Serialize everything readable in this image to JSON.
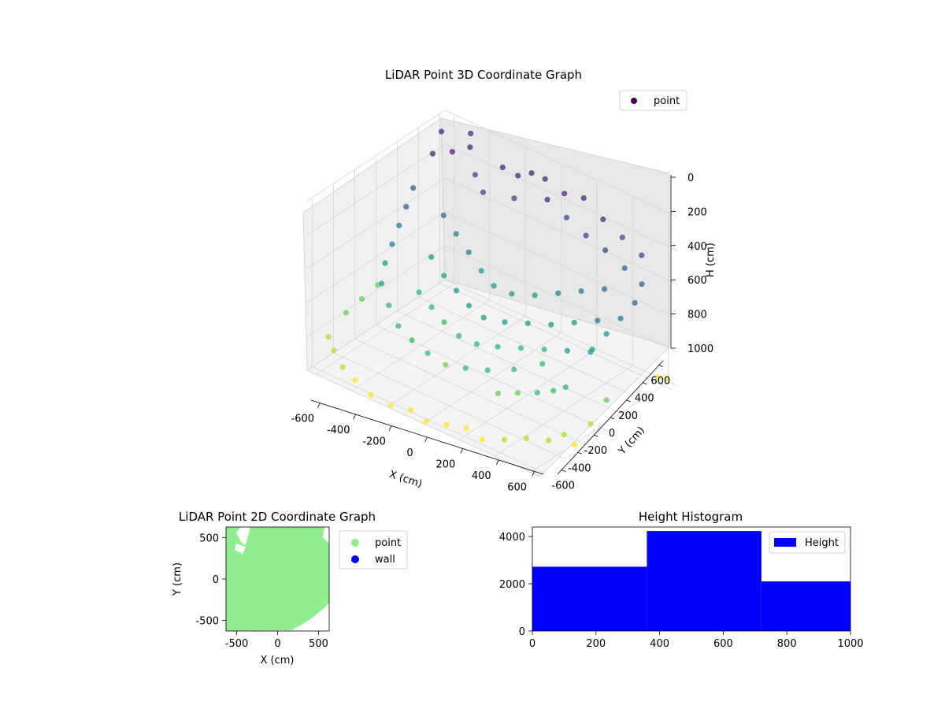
{
  "chart_data": [
    {
      "type": "scatter",
      "title": "LiDAR Point 3D Coordinate Graph",
      "xlabel": "X (cm)",
      "ylabel": "Y (cm)",
      "zlabel": "H (cm)",
      "xlim": [
        -650,
        650
      ],
      "ylim": [
        -650,
        650
      ],
      "zlim": [
        1000,
        0
      ],
      "x_ticks": [
        -600,
        -400,
        -200,
        0,
        200,
        400,
        600
      ],
      "y_ticks": [
        -600,
        -400,
        -200,
        0,
        200,
        400,
        600
      ],
      "z_ticks": [
        0,
        200,
        400,
        600,
        800,
        1000
      ],
      "grid": true,
      "legend": {
        "placement": "top-right",
        "entries": [
          "point"
        ]
      },
      "colormap": "viridis",
      "colors": {
        "low": "#440154",
        "mid": "#3b528b",
        "teal": "#21918c",
        "green": "#5ec962",
        "high": "#fde725"
      },
      "series": [
        {
          "name": "point",
          "points": [
            [
              -600,
              450,
              150
            ],
            [
              -520,
              500,
              120
            ],
            [
              -450,
              550,
              80
            ],
            [
              -380,
              480,
              180
            ],
            [
              -300,
              420,
              220
            ],
            [
              -250,
              520,
              90
            ],
            [
              -200,
              580,
              140
            ],
            [
              -150,
              460,
              200
            ],
            [
              -100,
              540,
              60
            ],
            [
              -60,
              600,
              100
            ],
            [
              0,
              520,
              160
            ],
            [
              60,
              580,
              120
            ],
            [
              120,
              500,
              200
            ],
            [
              180,
              560,
              80
            ],
            [
              240,
              480,
              240
            ],
            [
              300,
              540,
              140
            ],
            [
              360,
              460,
              260
            ],
            [
              420,
              520,
              180
            ],
            [
              480,
              440,
              300
            ],
            [
              540,
              500,
              220
            ],
            [
              600,
              400,
              320
            ],
            [
              620,
              300,
              380
            ],
            [
              600,
              200,
              440
            ],
            [
              580,
              100,
              500
            ],
            [
              560,
              0,
              560
            ],
            [
              -620,
              300,
              300
            ],
            [
              -600,
              200,
              360
            ],
            [
              -580,
              100,
              420
            ],
            [
              -560,
              0,
              480
            ],
            [
              -540,
              -100,
              540
            ],
            [
              -500,
              -200,
              600
            ],
            [
              -400,
              -300,
              640
            ],
            [
              -300,
              -380,
              680
            ],
            [
              -200,
              -420,
              700
            ],
            [
              -100,
              -440,
              720
            ],
            [
              0,
              -440,
              740
            ],
            [
              100,
              -420,
              720
            ],
            [
              200,
              -380,
              700
            ],
            [
              300,
              -300,
              680
            ],
            [
              400,
              -200,
              640
            ],
            [
              -450,
              300,
              380
            ],
            [
              -350,
              250,
              420
            ],
            [
              -250,
              200,
              460
            ],
            [
              -150,
              150,
              500
            ],
            [
              -50,
              100,
              520
            ],
            [
              50,
              100,
              520
            ],
            [
              150,
              150,
              500
            ],
            [
              250,
              200,
              460
            ],
            [
              350,
              250,
              420
            ],
            [
              450,
              300,
              380
            ],
            [
              -400,
              100,
              520
            ],
            [
              -300,
              50,
              560
            ],
            [
              -200,
              0,
              580
            ],
            [
              -100,
              -50,
              600
            ],
            [
              0,
              -80,
              610
            ],
            [
              100,
              -50,
              600
            ],
            [
              200,
              0,
              580
            ],
            [
              300,
              50,
              560
            ],
            [
              400,
              100,
              520
            ],
            [
              500,
              150,
              480
            ],
            [
              -350,
              -100,
              620
            ],
            [
              -250,
              -150,
              640
            ],
            [
              -150,
              -200,
              660
            ],
            [
              -50,
              -230,
              680
            ],
            [
              50,
              -230,
              680
            ],
            [
              150,
              -200,
              660
            ],
            [
              250,
              -150,
              640
            ],
            [
              350,
              -100,
              620
            ],
            [
              450,
              -50,
              600
            ],
            [
              550,
              0,
              580
            ],
            [
              300,
              -450,
              760
            ],
            [
              380,
              -400,
              740
            ],
            [
              460,
              -350,
              720
            ],
            [
              520,
              -300,
              700
            ],
            [
              560,
              -250,
              680
            ],
            [
              -620,
              -500,
              850
            ],
            [
              -560,
              -550,
              880
            ],
            [
              -480,
              -600,
              920
            ],
            [
              -400,
              -620,
              950
            ],
            [
              -300,
              -640,
              980
            ],
            [
              -200,
              -620,
              1000
            ],
            [
              -100,
              -600,
              990
            ],
            [
              0,
              -620,
              1000
            ],
            [
              100,
              -600,
              980
            ],
            [
              200,
              -580,
              960
            ],
            [
              300,
              -600,
              970
            ],
            [
              400,
              -560,
              940
            ],
            [
              500,
              -520,
              900
            ],
            [
              600,
              -480,
              880
            ],
            [
              640,
              -400,
              860
            ],
            [
              -640,
              -300,
              800
            ],
            [
              -640,
              -150,
              780
            ],
            [
              -640,
              0,
              760
            ],
            [
              640,
              0,
              820
            ],
            [
              640,
              -150,
              900
            ],
            [
              640,
              -300,
              960
            ],
            [
              620,
              600,
              950
            ],
            [
              560,
              620,
              980
            ],
            [
              -640,
              600,
              100
            ],
            [
              -500,
              640,
              60
            ]
          ]
        }
      ]
    },
    {
      "type": "scatter",
      "title": "LiDAR Point 2D Coordinate Graph",
      "xlabel": "X (cm)",
      "ylabel": "Y (cm)",
      "xlim": [
        -630,
        630
      ],
      "ylim": [
        -630,
        630
      ],
      "x_ticks": [
        -500,
        0,
        500
      ],
      "y_ticks": [
        -500,
        0,
        500
      ],
      "legend": {
        "placement": "outside-right",
        "entries": [
          "point",
          "wall"
        ]
      },
      "colors": {
        "point": "#90ee90",
        "wall": "#0000ff"
      },
      "series": [
        {
          "name": "point",
          "region": "filled-disk"
        },
        {
          "name": "wall",
          "points": []
        }
      ]
    },
    {
      "type": "bar",
      "title": "Height Histogram",
      "xlim": [
        0,
        1000
      ],
      "ylim": [
        0,
        4400
      ],
      "x_ticks": [
        0,
        200,
        400,
        600,
        800,
        1000
      ],
      "y_ticks": [
        0,
        2000,
        4000
      ],
      "bin_edges": [
        0,
        360,
        720,
        1000
      ],
      "series": [
        {
          "name": "Height",
          "values": [
            2720,
            4230,
            2100
          ]
        }
      ],
      "legend": {
        "placement": "top-right",
        "entries": [
          "Height"
        ]
      },
      "colors": {
        "bar": "#0000ff"
      }
    }
  ]
}
